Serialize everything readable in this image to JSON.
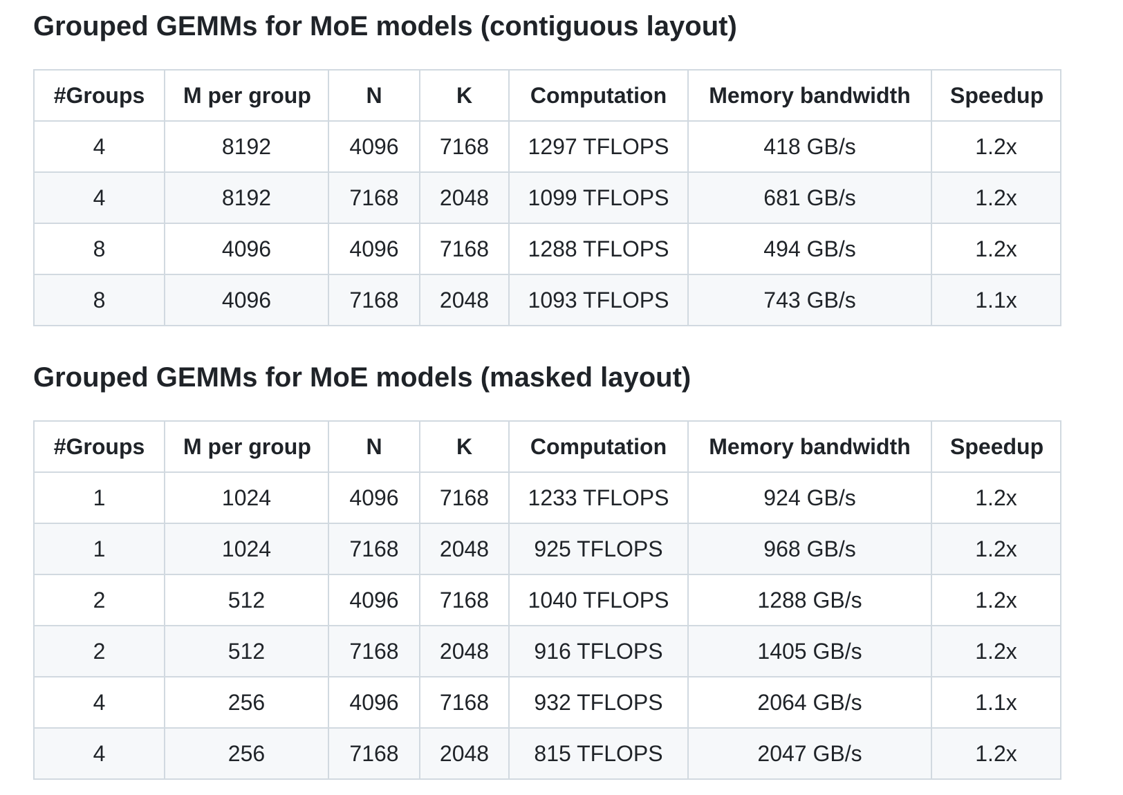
{
  "page": {
    "background_color": "#ffffff",
    "text_color": "#1f2328",
    "border_color": "#d1d9e0",
    "row_stripe_color": "#f6f8fa"
  },
  "sections": [
    {
      "heading": "Grouped GEMMs for MoE models (contiguous layout)",
      "table": {
        "headers": [
          "#Groups",
          "M per group",
          "N",
          "K",
          "Computation",
          "Memory bandwidth",
          "Speedup"
        ],
        "rows": [
          [
            "4",
            "8192",
            "4096",
            "7168",
            "1297 TFLOPS",
            "418 GB/s",
            "1.2x"
          ],
          [
            "4",
            "8192",
            "7168",
            "2048",
            "1099 TFLOPS",
            "681 GB/s",
            "1.2x"
          ],
          [
            "8",
            "4096",
            "4096",
            "7168",
            "1288 TFLOPS",
            "494 GB/s",
            "1.2x"
          ],
          [
            "8",
            "4096",
            "7168",
            "2048",
            "1093 TFLOPS",
            "743 GB/s",
            "1.1x"
          ]
        ]
      }
    },
    {
      "heading": "Grouped GEMMs for MoE models (masked layout)",
      "table": {
        "headers": [
          "#Groups",
          "M per group",
          "N",
          "K",
          "Computation",
          "Memory bandwidth",
          "Speedup"
        ],
        "rows": [
          [
            "1",
            "1024",
            "4096",
            "7168",
            "1233 TFLOPS",
            "924 GB/s",
            "1.2x"
          ],
          [
            "1",
            "1024",
            "7168",
            "2048",
            "925 TFLOPS",
            "968 GB/s",
            "1.2x"
          ],
          [
            "2",
            "512",
            "4096",
            "7168",
            "1040 TFLOPS",
            "1288 GB/s",
            "1.2x"
          ],
          [
            "2",
            "512",
            "7168",
            "2048",
            "916 TFLOPS",
            "1405 GB/s",
            "1.2x"
          ],
          [
            "4",
            "256",
            "4096",
            "7168",
            "932 TFLOPS",
            "2064 GB/s",
            "1.1x"
          ],
          [
            "4",
            "256",
            "7168",
            "2048",
            "815 TFLOPS",
            "2047 GB/s",
            "1.2x"
          ]
        ]
      }
    }
  ]
}
